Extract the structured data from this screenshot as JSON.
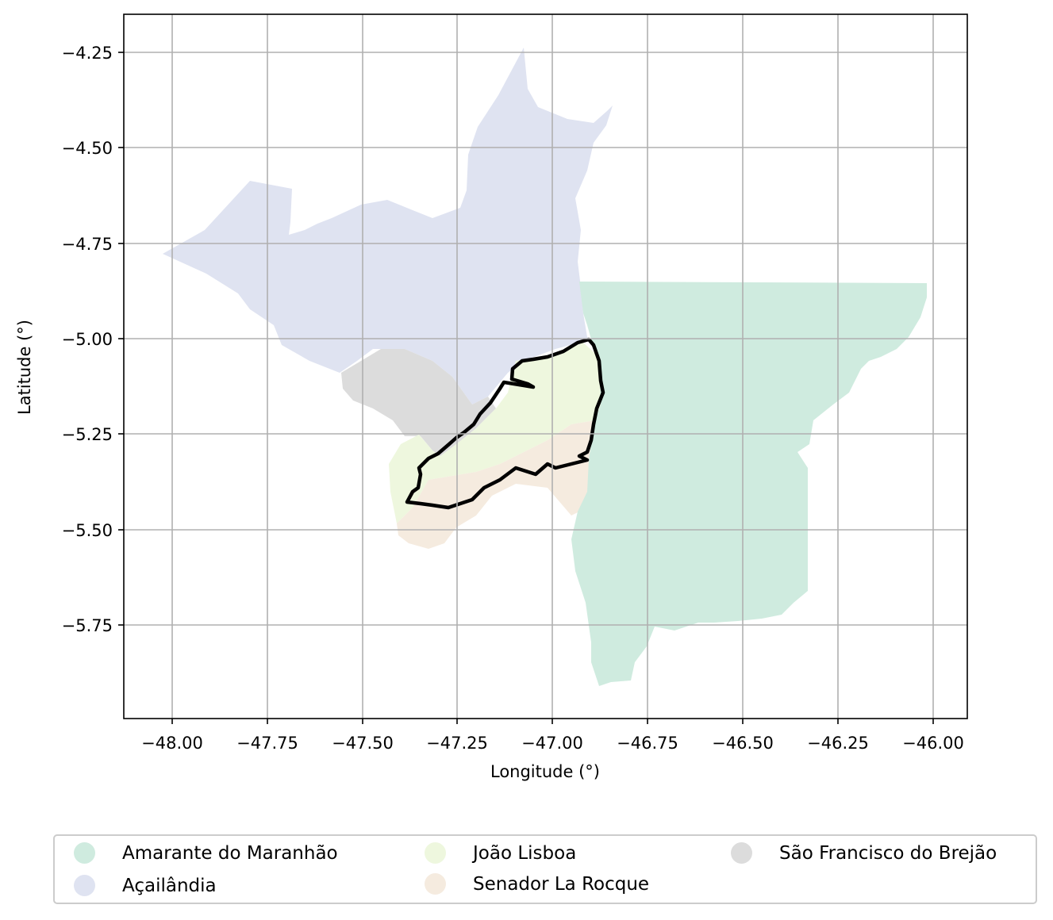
{
  "map": {
    "xlabel": "Longitude (°)",
    "ylabel": "Latitude (°)",
    "x_ticks": [
      "−48.00",
      "−47.75",
      "−47.50",
      "−47.25",
      "−47.00",
      "−46.75",
      "−46.50",
      "−46.25",
      "−46.00"
    ],
    "y_ticks": [
      "−4.25",
      "−4.50",
      "−4.75",
      "−5.00",
      "−5.25",
      "−5.50",
      "−5.75"
    ],
    "grid": true,
    "highlight_outline_color": "#000000"
  },
  "legend": {
    "placement": "bottom, below axes",
    "items": [
      {
        "label": "Amarante do Maranhão",
        "color": "#cfebdf"
      },
      {
        "label": "Açailândia",
        "color": "#dfe3f1"
      },
      {
        "label": "João Lisboa",
        "color": "#eef7de"
      },
      {
        "label": "Senador La Rocque",
        "color": "#f5ebdf"
      },
      {
        "label": "São Francisco do Brejão",
        "color": "#dcdcdc"
      }
    ]
  }
}
